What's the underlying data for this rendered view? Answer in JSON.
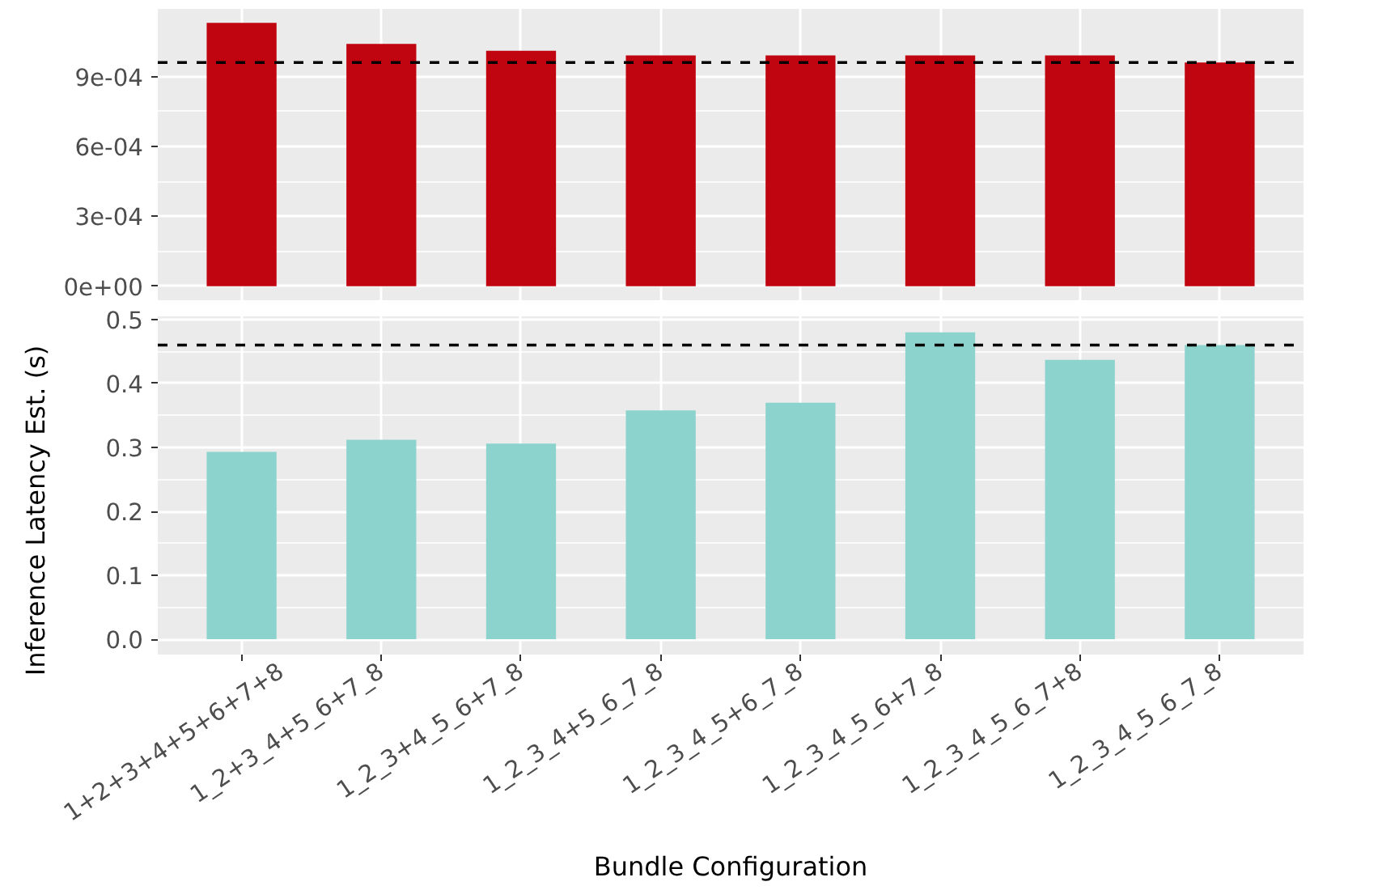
{
  "chart_data": [
    {
      "type": "bar",
      "values": [
        0.00113,
        0.00104,
        0.00101,
        0.00099,
        0.00099,
        0.00099,
        0.00099,
        0.00096
      ],
      "color": "#c00410",
      "ylim": [
        -6e-05,
        0.00119
      ],
      "yticks": [
        {
          "value": 0,
          "label": "0e+00"
        },
        {
          "value": 0.0003,
          "label": "3e-04"
        },
        {
          "value": 0.0006,
          "label": "6e-04"
        },
        {
          "value": 0.0009,
          "label": "9e-04"
        }
      ],
      "ref_lines": [
        {
          "axis": "y",
          "value": 0.00096,
          "line_style": "dashed",
          "color": "#000000"
        }
      ],
      "grid": true,
      "tick_labels": "y"
    },
    {
      "type": "bar",
      "categories": [
        "1+2+3+4+5+6+7+8",
        "1_2+3_4+5_6+7_8",
        "1_2_3+4_5_6+7_8",
        "1_2_3_4+5_6_7_8",
        "1_2_3_4_5+6_7_8",
        "1_2_3_4_5_6+7_8",
        "1_2_3_4_5_6_7+8",
        "1_2_3_4_5_6_7_8"
      ],
      "values": [
        0.293,
        0.312,
        0.306,
        0.358,
        0.37,
        0.48,
        0.437,
        0.46
      ],
      "color": "#8dd3cd",
      "ylim": [
        -0.024,
        0.505
      ],
      "yticks": [
        {
          "value": 0,
          "label": "0.0"
        },
        0.1,
        0.2,
        0.3,
        0.4,
        0.5
      ],
      "ref_lines": [
        {
          "axis": "y",
          "value": 0.46,
          "line_style": "dashed",
          "color": "#000000"
        }
      ],
      "grid": true,
      "xlabel": "Bundle Configuration",
      "ylabel": "Inference Latency Est. (s)"
    }
  ]
}
